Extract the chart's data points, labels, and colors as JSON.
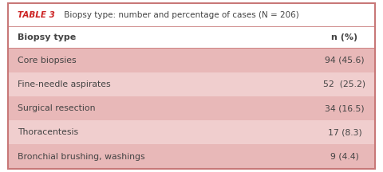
{
  "title_bold": "TABLE 3",
  "title_regular": " Biopsy type: number and percentage of cases (N = 206)",
  "col1_header": "Biopsy type",
  "col2_header": "n (%)",
  "rows": [
    {
      "biopsy_type": "Core biopsies",
      "n_pct": "94 (45.6)"
    },
    {
      "biopsy_type": "Fine-needle aspirates",
      "n_pct": "52  (25.2)"
    },
    {
      "biopsy_type": "Surgical resection",
      "n_pct": "34 (16.5)"
    },
    {
      "biopsy_type": "Thoracentesis",
      "n_pct": "17 (8.3)"
    },
    {
      "biopsy_type": "Bronchial brushing, washings",
      "n_pct": "9 (4.4)"
    }
  ],
  "stripe_dark": "#e8b8b8",
  "stripe_light": "#f0cece",
  "header_bg": "#ffffff",
  "outer_border_color": "#c87878",
  "text_color": "#444444",
  "bold_color": "#cc2222",
  "title_fontsize": 7.5,
  "header_fontsize": 8.0,
  "row_fontsize": 7.8
}
